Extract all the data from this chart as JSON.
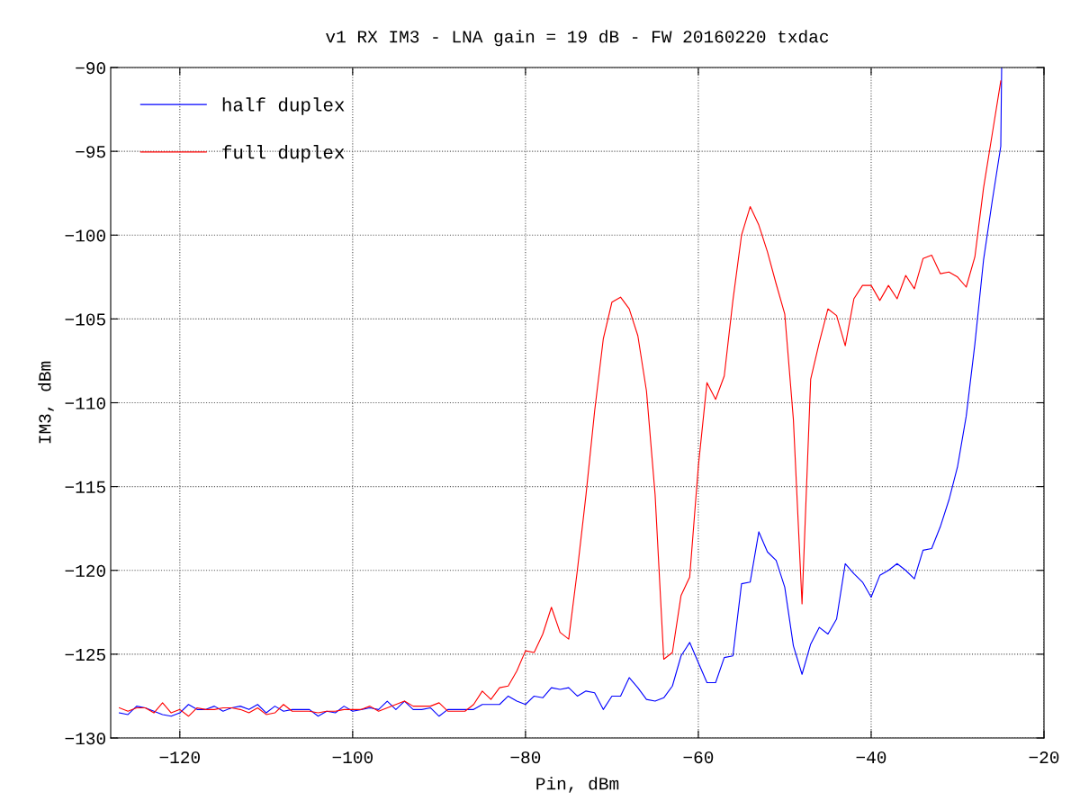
{
  "chart_data": {
    "type": "line",
    "title": "v1 RX IM3 - LNA gain = 19 dB - FW 20160220 txdac",
    "xlabel": "Pin, dBm",
    "ylabel": "IM3, dBm",
    "xlim": [
      -128,
      -20
    ],
    "xticks": [
      -120,
      -100,
      -80,
      -60,
      -40,
      -20
    ],
    "ylim": [
      -130,
      -90
    ],
    "yticks": [
      -130,
      -125,
      -120,
      -115,
      -110,
      -105,
      -100,
      -95,
      -90
    ],
    "grid": true,
    "legend": "top left",
    "marker": "none",
    "line_style": "solid",
    "series": [
      {
        "name": "half duplex",
        "color": "#0000ff",
        "x": [
          -127,
          -126,
          -125,
          -124,
          -123,
          -122,
          -121,
          -120,
          -119,
          -118,
          -117,
          -116,
          -115,
          -114,
          -113,
          -112,
          -111,
          -110,
          -109,
          -108,
          -107,
          -106,
          -105,
          -104,
          -103,
          -102,
          -101,
          -100,
          -99,
          -98,
          -97,
          -96,
          -95,
          -94,
          -93,
          -92,
          -91,
          -90,
          -89,
          -88,
          -87,
          -86,
          -85,
          -84,
          -83,
          -82,
          -81,
          -80,
          -79,
          -78,
          -77,
          -76,
          -75,
          -74,
          -73,
          -72,
          -71,
          -70,
          -69,
          -68,
          -67,
          -66,
          -65,
          -64,
          -63,
          -62,
          -61,
          -60,
          -59,
          -58,
          -57,
          -56,
          -55,
          -54,
          -53,
          -52,
          -51,
          -50,
          -49,
          -48,
          -47,
          -46,
          -45,
          -44,
          -43,
          -42,
          -41,
          -40,
          -39,
          -38,
          -37,
          -36,
          -35,
          -34,
          -33,
          -32,
          -31,
          -30,
          -29,
          -28,
          -27,
          -26,
          -25,
          -24.9
        ],
        "values": [
          -128.5,
          -128.6,
          -128.1,
          -128.2,
          -128.4,
          -128.6,
          -128.7,
          -128.5,
          -128.0,
          -128.3,
          -128.3,
          -128.1,
          -128.4,
          -128.2,
          -128.1,
          -128.3,
          -128.0,
          -128.5,
          -128.1,
          -128.4,
          -128.3,
          -128.3,
          -128.3,
          -128.7,
          -128.4,
          -128.5,
          -128.1,
          -128.4,
          -128.3,
          -128.2,
          -128.3,
          -127.8,
          -128.3,
          -127.8,
          -128.3,
          -128.3,
          -128.2,
          -128.7,
          -128.3,
          -128.3,
          -128.3,
          -128.3,
          -128.0,
          -128.0,
          -128.0,
          -127.5,
          -127.8,
          -128.0,
          -127.5,
          -127.6,
          -127.0,
          -127.1,
          -127.0,
          -127.5,
          -127.2,
          -127.3,
          -128.3,
          -127.5,
          -127.5,
          -126.4,
          -127.0,
          -127.7,
          -127.8,
          -127.6,
          -126.9,
          -125.1,
          -124.3,
          -125.5,
          -126.7,
          -126.7,
          -125.2,
          -125.1,
          -120.8,
          -120.7,
          -117.7,
          -118.9,
          -119.4,
          -121.0,
          -124.5,
          -126.2,
          -124.4,
          -123.4,
          -123.8,
          -122.9,
          -119.6,
          -120.2,
          -120.7,
          -121.6,
          -120.3,
          -120.0,
          -119.6,
          -120.0,
          -120.5,
          -118.8,
          -118.7,
          -117.4,
          -115.8,
          -113.8,
          -110.8,
          -106.5,
          -101.5,
          -98.0,
          -94.7,
          -90.0
        ]
      },
      {
        "name": "full duplex",
        "color": "#ff0000",
        "x": [
          -127,
          -126,
          -125,
          -124,
          -123,
          -122,
          -121,
          -120,
          -119,
          -118,
          -117,
          -116,
          -115,
          -114,
          -113,
          -112,
          -111,
          -110,
          -109,
          -108,
          -107,
          -106,
          -105,
          -104,
          -103,
          -102,
          -101,
          -100,
          -99,
          -98,
          -97,
          -96,
          -95,
          -94,
          -93,
          -92,
          -91,
          -90,
          -89,
          -88,
          -87,
          -86,
          -85,
          -84,
          -83,
          -82,
          -81,
          -80,
          -79,
          -78,
          -77,
          -76,
          -75,
          -74,
          -73,
          -72,
          -71,
          -70,
          -69,
          -68,
          -67,
          -66,
          -65,
          -64,
          -63,
          -62,
          -61,
          -60,
          -59,
          -58,
          -57,
          -56,
          -55,
          -54,
          -53,
          -52,
          -51,
          -50,
          -49,
          -48,
          -47,
          -46,
          -45,
          -44,
          -43,
          -42,
          -41,
          -40,
          -39,
          -38,
          -37,
          -36,
          -35,
          -34,
          -33,
          -32,
          -31,
          -30,
          -29,
          -28,
          -27,
          -26,
          -25
        ],
        "values": [
          -128.2,
          -128.4,
          -128.2,
          -128.2,
          -128.5,
          -127.9,
          -128.5,
          -128.3,
          -128.7,
          -128.2,
          -128.3,
          -128.3,
          -128.2,
          -128.2,
          -128.3,
          -128.5,
          -128.2,
          -128.6,
          -128.5,
          -128.0,
          -128.4,
          -128.4,
          -128.4,
          -128.5,
          -128.4,
          -128.4,
          -128.3,
          -128.3,
          -128.3,
          -128.1,
          -128.4,
          -128.2,
          -128.0,
          -127.8,
          -128.1,
          -128.1,
          -128.1,
          -127.9,
          -128.4,
          -128.4,
          -128.4,
          -128.0,
          -127.2,
          -127.7,
          -127.0,
          -126.9,
          -126.0,
          -124.8,
          -124.9,
          -123.8,
          -122.2,
          -123.7,
          -124.1,
          -120.0,
          -115.5,
          -110.5,
          -106.2,
          -104.0,
          -103.7,
          -104.4,
          -106.0,
          -109.3,
          -115.5,
          -125.3,
          -124.9,
          -121.5,
          -120.4,
          -113.8,
          -108.8,
          -109.8,
          -108.4,
          -103.9,
          -100.0,
          -98.3,
          -99.4,
          -101.0,
          -102.9,
          -104.7,
          -111.0,
          -122.0,
          -108.6,
          -106.4,
          -104.4,
          -104.8,
          -106.6,
          -103.8,
          -103.0,
          -103.0,
          -103.9,
          -103.0,
          -103.8,
          -102.4,
          -103.2,
          -101.4,
          -101.2,
          -102.3,
          -102.2,
          -102.5,
          -103.1,
          -101.3,
          -97.2,
          -94.0,
          -90.8
        ]
      }
    ]
  }
}
